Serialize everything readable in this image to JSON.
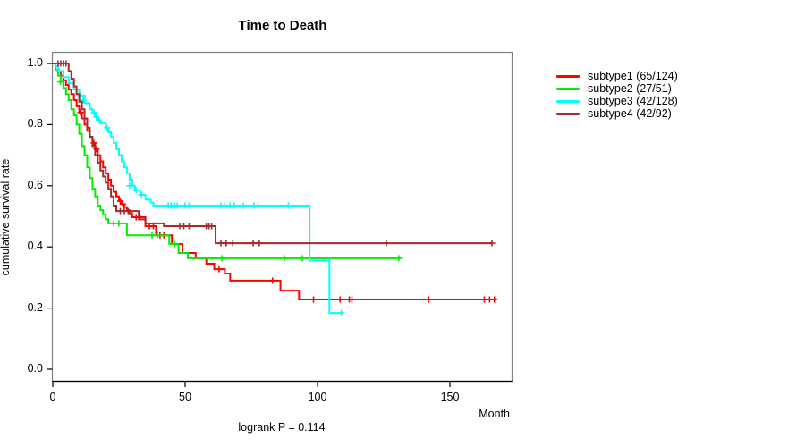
{
  "figure": {
    "title": "Time to Death",
    "x_axis_label": "Month",
    "y_axis_label": "cumulative survival rate",
    "footnote": "logrank P = 0.114"
  },
  "chart_data": {
    "type": "line",
    "variant": "kaplan-meier-step",
    "title": "Time to Death",
    "xlabel": "Month",
    "ylabel": "cumulative survival rate",
    "footnote": "logrank P = 0.114",
    "xlim": [
      0,
      174
    ],
    "ylim": [
      0,
      1.03
    ],
    "xticks": [
      0,
      50,
      100,
      150
    ],
    "yticks": [
      0.0,
      0.2,
      0.4,
      0.6,
      0.8,
      1.0
    ],
    "grid": false,
    "legend_position": "right",
    "axis_color": "#000000",
    "box_color": "#808080",
    "series": [
      {
        "name": "subtype1 (65/124)",
        "color": "#FF0000",
        "points": [
          [
            0,
            1
          ],
          [
            1,
            0.99
          ],
          [
            2,
            0.975
          ],
          [
            3,
            0.96
          ],
          [
            4,
            0.945
          ],
          [
            5,
            0.93
          ],
          [
            6,
            0.915
          ],
          [
            7,
            0.9
          ],
          [
            8,
            0.88
          ],
          [
            9,
            0.86
          ],
          [
            10,
            0.84
          ],
          [
            11,
            0.82
          ],
          [
            12,
            0.8
          ],
          [
            13,
            0.78
          ],
          [
            14,
            0.76
          ],
          [
            15,
            0.74
          ],
          [
            16,
            0.72
          ],
          [
            17,
            0.7
          ],
          [
            18,
            0.68
          ],
          [
            19,
            0.66
          ],
          [
            20,
            0.64
          ],
          [
            21,
            0.62
          ],
          [
            22,
            0.6
          ],
          [
            23,
            0.58
          ],
          [
            24,
            0.565
          ],
          [
            25,
            0.55
          ],
          [
            26,
            0.54
          ],
          [
            27,
            0.53
          ],
          [
            28,
            0.52
          ],
          [
            29,
            0.51
          ],
          [
            30,
            0.497
          ],
          [
            35,
            0.468
          ],
          [
            39,
            0.438
          ],
          [
            45,
            0.409
          ],
          [
            49,
            0.38
          ],
          [
            54,
            0.363
          ],
          [
            58,
            0.345
          ],
          [
            61,
            0.327
          ],
          [
            65,
            0.313
          ],
          [
            67,
            0.29
          ],
          [
            86,
            0.257
          ],
          [
            93,
            0.228
          ],
          [
            167,
            0.228
          ]
        ],
        "censors": [
          [
            10.5,
            0.84
          ],
          [
            15.5,
            0.74
          ],
          [
            16.5,
            0.72
          ],
          [
            25.5,
            0.55
          ],
          [
            26.5,
            0.54
          ],
          [
            31.5,
            0.497
          ],
          [
            33,
            0.497
          ],
          [
            36.5,
            0.468
          ],
          [
            38,
            0.468
          ],
          [
            40.5,
            0.438
          ],
          [
            42,
            0.438
          ],
          [
            62.8,
            0.327
          ],
          [
            83,
            0.29
          ],
          [
            98.5,
            0.228
          ],
          [
            108.5,
            0.228
          ],
          [
            112,
            0.228
          ],
          [
            113,
            0.228
          ],
          [
            142,
            0.228
          ],
          [
            163,
            0.228
          ],
          [
            165,
            0.228
          ],
          [
            166.8,
            0.228
          ]
        ]
      },
      {
        "name": "subtype2 (27/51)",
        "color": "#00EE00",
        "points": [
          [
            0,
            1
          ],
          [
            1,
            0.98
          ],
          [
            2,
            0.96
          ],
          [
            3,
            0.94
          ],
          [
            4,
            0.92
          ],
          [
            5,
            0.9
          ],
          [
            6,
            0.88
          ],
          [
            7,
            0.85
          ],
          [
            8,
            0.83
          ],
          [
            9,
            0.8
          ],
          [
            10,
            0.77
          ],
          [
            11,
            0.73
          ],
          [
            12,
            0.7
          ],
          [
            13,
            0.66
          ],
          [
            14,
            0.625
          ],
          [
            15,
            0.59
          ],
          [
            16,
            0.565
          ],
          [
            17,
            0.535
          ],
          [
            18,
            0.52
          ],
          [
            19,
            0.506
          ],
          [
            20,
            0.49
          ],
          [
            21,
            0.477
          ],
          [
            28,
            0.438
          ],
          [
            44,
            0.409
          ],
          [
            47.5,
            0.38
          ],
          [
            51,
            0.363
          ],
          [
            131,
            0.363
          ]
        ],
        "censors": [
          [
            2.9,
            0.94
          ],
          [
            23,
            0.477
          ],
          [
            25,
            0.477
          ],
          [
            37.5,
            0.438
          ],
          [
            39.5,
            0.438
          ],
          [
            46,
            0.409
          ],
          [
            63.9,
            0.363
          ],
          [
            87.5,
            0.363
          ],
          [
            94.3,
            0.363
          ],
          [
            130.7,
            0.363
          ]
        ]
      },
      {
        "name": "subtype3 (42/128)",
        "color": "#00FFFF",
        "points": [
          [
            0,
            1
          ],
          [
            1,
            0.99
          ],
          [
            2,
            0.975
          ],
          [
            4,
            0.955
          ],
          [
            6,
            0.935
          ],
          [
            8,
            0.915
          ],
          [
            10,
            0.895
          ],
          [
            12,
            0.87
          ],
          [
            14,
            0.85
          ],
          [
            15,
            0.84
          ],
          [
            16,
            0.825
          ],
          [
            17,
            0.815
          ],
          [
            18,
            0.805
          ],
          [
            20,
            0.79
          ],
          [
            21,
            0.775
          ],
          [
            22,
            0.76
          ],
          [
            23,
            0.74
          ],
          [
            24,
            0.72
          ],
          [
            25,
            0.7
          ],
          [
            26,
            0.68
          ],
          [
            27,
            0.66
          ],
          [
            28,
            0.64
          ],
          [
            29,
            0.62
          ],
          [
            30,
            0.6
          ],
          [
            31,
            0.585
          ],
          [
            33,
            0.57
          ],
          [
            35,
            0.555
          ],
          [
            37,
            0.545
          ],
          [
            38,
            0.535
          ],
          [
            97,
            0.355
          ],
          [
            104.5,
            0.184
          ],
          [
            110,
            0.184
          ]
        ],
        "censors": [
          [
            2.5,
            0.975
          ],
          [
            10.5,
            0.895
          ],
          [
            11.5,
            0.88
          ],
          [
            15.5,
            0.84
          ],
          [
            16.5,
            0.825
          ],
          [
            17.5,
            0.815
          ],
          [
            20.5,
            0.79
          ],
          [
            29,
            0.6
          ],
          [
            31.5,
            0.585
          ],
          [
            33.5,
            0.57
          ],
          [
            43.6,
            0.535
          ],
          [
            44.7,
            0.535
          ],
          [
            46,
            0.535
          ],
          [
            47,
            0.535
          ],
          [
            50,
            0.535
          ],
          [
            51.5,
            0.535
          ],
          [
            63.5,
            0.535
          ],
          [
            65,
            0.535
          ],
          [
            67,
            0.535
          ],
          [
            68.5,
            0.535
          ],
          [
            72,
            0.535
          ],
          [
            76,
            0.535
          ],
          [
            77.5,
            0.535
          ],
          [
            89,
            0.535
          ],
          [
            109,
            0.184
          ]
        ]
      },
      {
        "name": "subtype4 (42/92)",
        "color": "#A52A2A",
        "points": [
          [
            0,
            1
          ],
          [
            5.5,
            1
          ],
          [
            6,
            0.975
          ],
          [
            7,
            0.95
          ],
          [
            8,
            0.925
          ],
          [
            9,
            0.9
          ],
          [
            10,
            0.875
          ],
          [
            11,
            0.85
          ],
          [
            12,
            0.82
          ],
          [
            13,
            0.79
          ],
          [
            14,
            0.76
          ],
          [
            15,
            0.73
          ],
          [
            16,
            0.7
          ],
          [
            17,
            0.675
          ],
          [
            18,
            0.65
          ],
          [
            19,
            0.63
          ],
          [
            20,
            0.61
          ],
          [
            21,
            0.59
          ],
          [
            22,
            0.565
          ],
          [
            23,
            0.535
          ],
          [
            24,
            0.517
          ],
          [
            32.5,
            0.49
          ],
          [
            35,
            0.477
          ],
          [
            42,
            0.468
          ],
          [
            61.5,
            0.412
          ],
          [
            166,
            0.412
          ]
        ],
        "censors": [
          [
            2,
            1
          ],
          [
            3,
            1
          ],
          [
            4,
            1
          ],
          [
            5,
            1
          ],
          [
            25.5,
            0.517
          ],
          [
            27,
            0.517
          ],
          [
            28.5,
            0.517
          ],
          [
            48,
            0.468
          ],
          [
            49.5,
            0.468
          ],
          [
            51.5,
            0.468
          ],
          [
            58,
            0.468
          ],
          [
            59,
            0.468
          ],
          [
            60,
            0.468
          ],
          [
            63.5,
            0.412
          ],
          [
            65.5,
            0.412
          ],
          [
            68,
            0.412
          ],
          [
            75.7,
            0.412
          ],
          [
            78,
            0.412
          ],
          [
            126,
            0.412
          ],
          [
            165.9,
            0.412
          ]
        ]
      }
    ]
  }
}
